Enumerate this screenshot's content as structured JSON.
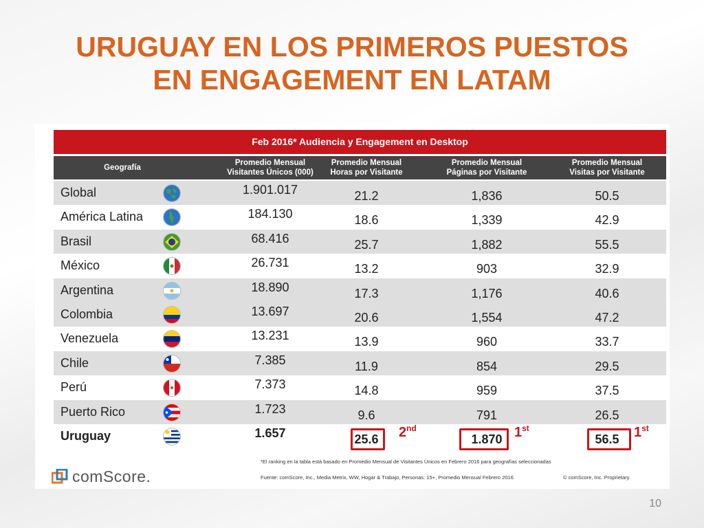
{
  "title_line1": "URUGUAY EN LOS PRIMEROS PUESTOS",
  "title_line2": "EN ENGAGEMENT EN LATAM",
  "table_title": "Feb 2016* Audiencia y Engagement en Desktop",
  "columns": [
    {
      "l1": "Geografía",
      "l2": ""
    },
    {
      "l1": "Promedio Mensual",
      "l2": "Visitantes Únicos (000)"
    },
    {
      "l1": "Promedio Mensual",
      "l2": "Horas por Visitante"
    },
    {
      "l1": "Promedio Mensual",
      "l2": "Páginas por Visitante"
    },
    {
      "l1": "Promedio Mensual",
      "l2": "Visitas por Visitante"
    }
  ],
  "rows": [
    {
      "geo": "Global",
      "visitors": "1.901.017",
      "hours": "21.2",
      "pages": "1,836",
      "visits": "50.5"
    },
    {
      "geo": "América Latina",
      "visitors": "184.130",
      "hours": "18.6",
      "pages": "1,339",
      "visits": "42.9"
    },
    {
      "geo": "Brasil",
      "visitors": "68.416",
      "hours": "25.7",
      "pages": "1,882",
      "visits": "55.5"
    },
    {
      "geo": "México",
      "visitors": "26.731",
      "hours": "13.2",
      "pages": "903",
      "visits": "32.9"
    },
    {
      "geo": "Argentina",
      "visitors": "18.890",
      "hours": "17.3",
      "pages": "1,176",
      "visits": "40.6"
    },
    {
      "geo": "Colombia",
      "visitors": "13.697",
      "hours": "20.6",
      "pages": "1,554",
      "visits": "47.2"
    },
    {
      "geo": "Venezuela",
      "visitors": "13.231",
      "hours": "13.9",
      "pages": "960",
      "visits": "33.7"
    },
    {
      "geo": "Chile",
      "visitors": "7.385",
      "hours": "11.9",
      "pages": "854",
      "visits": "29.5"
    },
    {
      "geo": "Perú",
      "visitors": "7.373",
      "hours": "14.8",
      "pages": "959",
      "visits": "37.5"
    },
    {
      "geo": "Puerto Rico",
      "visitors": "1.723",
      "hours": "9.6",
      "pages": "791",
      "visits": "26.5"
    },
    {
      "geo": "Uruguay",
      "visitors": "1.657",
      "hours": "25.6",
      "pages": "1.870",
      "visits": "56.5"
    }
  ],
  "ranks": [
    {
      "num": "2",
      "suffix": "nd"
    },
    {
      "num": "1",
      "suffix": "st"
    },
    {
      "num": "1",
      "suffix": "st"
    }
  ],
  "footnote": "*El ranking en la tabla está basado en Promedio Mensual de Visitantes Únicos en Febrero 2016 para geografías seleccionadas",
  "source": "Fuente: comScore, Inc., Media Metrix, WW, Hogar & Trabajo, Personas: 15+, Promedio Mensual Febrero 2016",
  "copyright": "© comScore, Inc. Proprietary.",
  "logo_text": "comScore.",
  "page_number": "10",
  "colors": {
    "accent": "#d8641f",
    "red": "#c8161d",
    "header_gray": "#444444",
    "row_alt": "#dedede"
  }
}
